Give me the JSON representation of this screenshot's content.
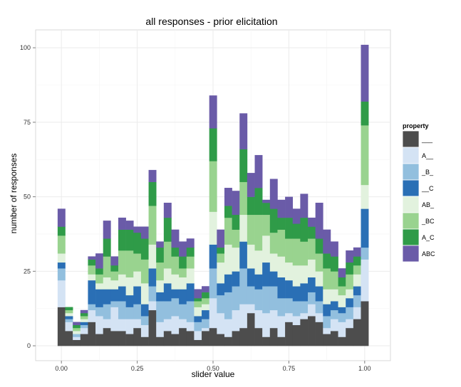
{
  "chart_data": {
    "type": "bar",
    "stacked": true,
    "title": "all responses - prior elicitation",
    "xlabel": "slider value",
    "ylabel": "number of responses",
    "xlim": [
      -0.085,
      1.085
    ],
    "ylim": [
      -5,
      106
    ],
    "bin_width": 0.025,
    "x_ticks": [
      0,
      0.25,
      0.5,
      0.75,
      1
    ],
    "x_tick_labels": [
      "0.00",
      "0.25",
      "0.50",
      "0.75",
      "1.00"
    ],
    "y_ticks": [
      0,
      25,
      50,
      75,
      100
    ],
    "y_tick_labels": [
      "0",
      "25",
      "50",
      "75",
      "100"
    ],
    "grid": true,
    "legend": {
      "title": "property",
      "placement": "right"
    },
    "x": [
      0.0,
      0.025,
      0.05,
      0.075,
      0.1,
      0.125,
      0.15,
      0.175,
      0.2,
      0.225,
      0.25,
      0.275,
      0.3,
      0.325,
      0.35,
      0.375,
      0.4,
      0.425,
      0.45,
      0.475,
      0.5,
      0.525,
      0.55,
      0.575,
      0.6,
      0.625,
      0.65,
      0.675,
      0.7,
      0.725,
      0.75,
      0.775,
      0.8,
      0.825,
      0.85,
      0.875,
      0.9,
      0.925,
      0.95,
      0.975,
      1.0
    ],
    "series": [
      {
        "name": "___",
        "color": "#4d4d4d",
        "values": [
          13,
          5,
          2,
          4,
          8,
          4,
          6,
          5,
          5,
          4,
          6,
          3,
          12,
          3,
          5,
          4,
          6,
          5,
          2,
          5,
          6,
          4,
          3,
          5,
          6,
          11,
          6,
          3,
          6,
          3,
          8,
          7,
          9,
          10,
          8,
          4,
          5,
          3,
          6,
          9,
          15
        ]
      },
      {
        "name": "A__",
        "color": "#d4e3f4",
        "values": [
          9,
          3,
          1,
          2,
          4,
          6,
          3,
          8,
          4,
          5,
          3,
          4,
          3,
          5,
          4,
          6,
          3,
          3,
          3,
          1,
          10,
          7,
          6,
          7,
          8,
          3,
          6,
          8,
          6,
          7,
          3,
          3,
          2,
          4,
          3,
          2,
          4,
          5,
          3,
          4,
          14
        ]
      },
      {
        "name": "_B_",
        "color": "#92bfde",
        "values": [
          4,
          1,
          1,
          1,
          2,
          3,
          5,
          2,
          6,
          4,
          5,
          3,
          5,
          7,
          6,
          6,
          5,
          7,
          3,
          3,
          10,
          6,
          9,
          8,
          12,
          6,
          7,
          9,
          8,
          6,
          5,
          5,
          4,
          4,
          4,
          4,
          3,
          3,
          4,
          4,
          4
        ]
      },
      {
        "name": "__C",
        "color": "#2a6fb5",
        "values": [
          2,
          1,
          0,
          1,
          8,
          6,
          5,
          4,
          5,
          4,
          6,
          4,
          6,
          3,
          6,
          3,
          5,
          6,
          2,
          3,
          8,
          4,
          6,
          5,
          9,
          6,
          5,
          8,
          5,
          7,
          6,
          5,
          6,
          5,
          5,
          4,
          3,
          2,
          3,
          3,
          13
        ]
      },
      {
        "name": "AB_",
        "color": "#e2f2de",
        "values": [
          3,
          1,
          1,
          1,
          2,
          2,
          4,
          3,
          4,
          6,
          5,
          7,
          8,
          4,
          5,
          5,
          4,
          5,
          3,
          2,
          11,
          7,
          10,
          8,
          9,
          8,
          8,
          9,
          6,
          7,
          6,
          7,
          6,
          6,
          5,
          5,
          4,
          4,
          3,
          4,
          8
        ]
      },
      {
        "name": "_BC",
        "color": "#99d38f",
        "values": [
          6,
          1,
          1,
          1,
          3,
          3,
          7,
          3,
          8,
          9,
          6,
          8,
          13,
          6,
          9,
          6,
          3,
          4,
          2,
          2,
          17,
          3,
          9,
          6,
          11,
          10,
          12,
          7,
          7,
          9,
          8,
          9,
          8,
          7,
          6,
          7,
          6,
          3,
          5,
          3,
          20
        ]
      },
      {
        "name": "A_C",
        "color": "#2f9b48",
        "values": [
          3,
          1,
          1,
          1,
          2,
          2,
          6,
          2,
          7,
          7,
          7,
          7,
          8,
          5,
          8,
          3,
          4,
          3,
          1,
          2,
          11,
          2,
          4,
          5,
          11,
          6,
          9,
          4,
          8,
          4,
          7,
          5,
          8,
          4,
          5,
          5,
          5,
          3,
          4,
          3,
          8
        ]
      },
      {
        "name": "ABC",
        "color": "#6a5ba8",
        "values": [
          6,
          0,
          1,
          1,
          1,
          5,
          6,
          3,
          4,
          3,
          2,
          4,
          4,
          2,
          5,
          6,
          5,
          3,
          3,
          2,
          11,
          6,
          6,
          8,
          12,
          8,
          11,
          1,
          10,
          6,
          7,
          5,
          8,
          3,
          12,
          8,
          5,
          3,
          4,
          3,
          19
        ]
      }
    ]
  }
}
